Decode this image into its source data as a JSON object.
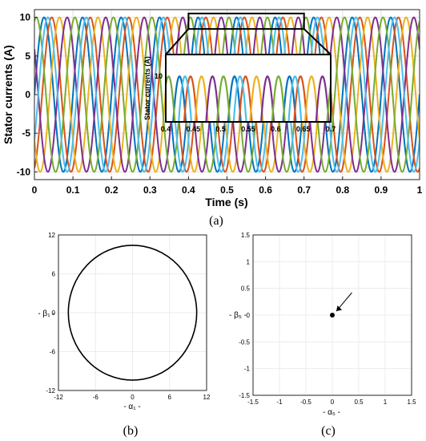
{
  "chart_data": [
    {
      "id": "a",
      "type": "line",
      "title": "",
      "xlabel": "Time (s)",
      "ylabel": "Stator currents (A)",
      "xlim": [
        0,
        1
      ],
      "ylim": [
        -11,
        11
      ],
      "x_ticks": [
        0,
        0.1,
        0.2,
        0.3,
        0.4,
        0.5,
        0.6,
        0.7,
        0.8,
        0.9,
        1
      ],
      "x_tick_labels": [
        "0",
        "0.1",
        "0.2",
        "0.3",
        "0.4",
        "0.5",
        "0.6",
        "0.7",
        "0.8",
        "0.9",
        "1"
      ],
      "y_ticks": [
        -10,
        -5,
        0,
        5,
        10
      ],
      "y_tick_labels": [
        "-10",
        "-5",
        "0",
        "5",
        "10"
      ],
      "grid": true,
      "frequency_hz": 10,
      "amplitude": 10,
      "series": [
        {
          "color": "#0072BD",
          "phase_deg": 0
        },
        {
          "color": "#D95319",
          "phase_deg": -72
        },
        {
          "color": "#EDB120",
          "phase_deg": -144
        },
        {
          "color": "#7E2F8E",
          "phase_deg": -216
        },
        {
          "color": "#77AC30",
          "phase_deg": -288
        },
        {
          "color": "#4DBEEE",
          "phase_deg": -36
        }
      ],
      "zoom_region": {
        "x": [
          0.4,
          0.7
        ],
        "y": [
          8.5,
          10.5
        ]
      },
      "inset": {
        "ylabel": "Stator currents (A)",
        "xlim": [
          0.4,
          0.7
        ],
        "x_tick_labels": [
          "0.4",
          "0.45",
          "0.5",
          "0.55",
          "0.6",
          "0.65",
          "0.7"
        ],
        "y_tick_label": "10"
      },
      "panel_label": "(a)"
    },
    {
      "id": "b",
      "type": "line",
      "xlabel": "- α₁ -",
      "ylabel": "- β₁ -",
      "xlim": [
        -12,
        12
      ],
      "ylim": [
        -12,
        12
      ],
      "x_tick_labels": [
        "-12",
        "-6",
        "0",
        "6",
        "12"
      ],
      "y_tick_labels": [
        "12",
        "6",
        "0",
        "-6",
        "-12"
      ],
      "circle": {
        "center": [
          0,
          0
        ],
        "radius": 10.4
      },
      "grid": true,
      "panel_label": "(b)"
    },
    {
      "id": "c",
      "type": "scatter",
      "xlabel": "- α₅ -",
      "ylabel": "- β₅ -",
      "xlim": [
        -1.5,
        1.5
      ],
      "ylim": [
        -1.5,
        1.5
      ],
      "x_tick_labels": [
        "-1.5",
        "-1",
        "-0.5",
        "0",
        "0.5",
        "1",
        "1.5"
      ],
      "y_tick_labels": [
        "1.5",
        "1",
        "0.5",
        "0",
        "-0.5",
        "-1",
        "-1.5"
      ],
      "point": [
        0,
        0
      ],
      "arrow_from": [
        0.37,
        0.42
      ],
      "grid": true,
      "panel_label": "(c)"
    }
  ]
}
